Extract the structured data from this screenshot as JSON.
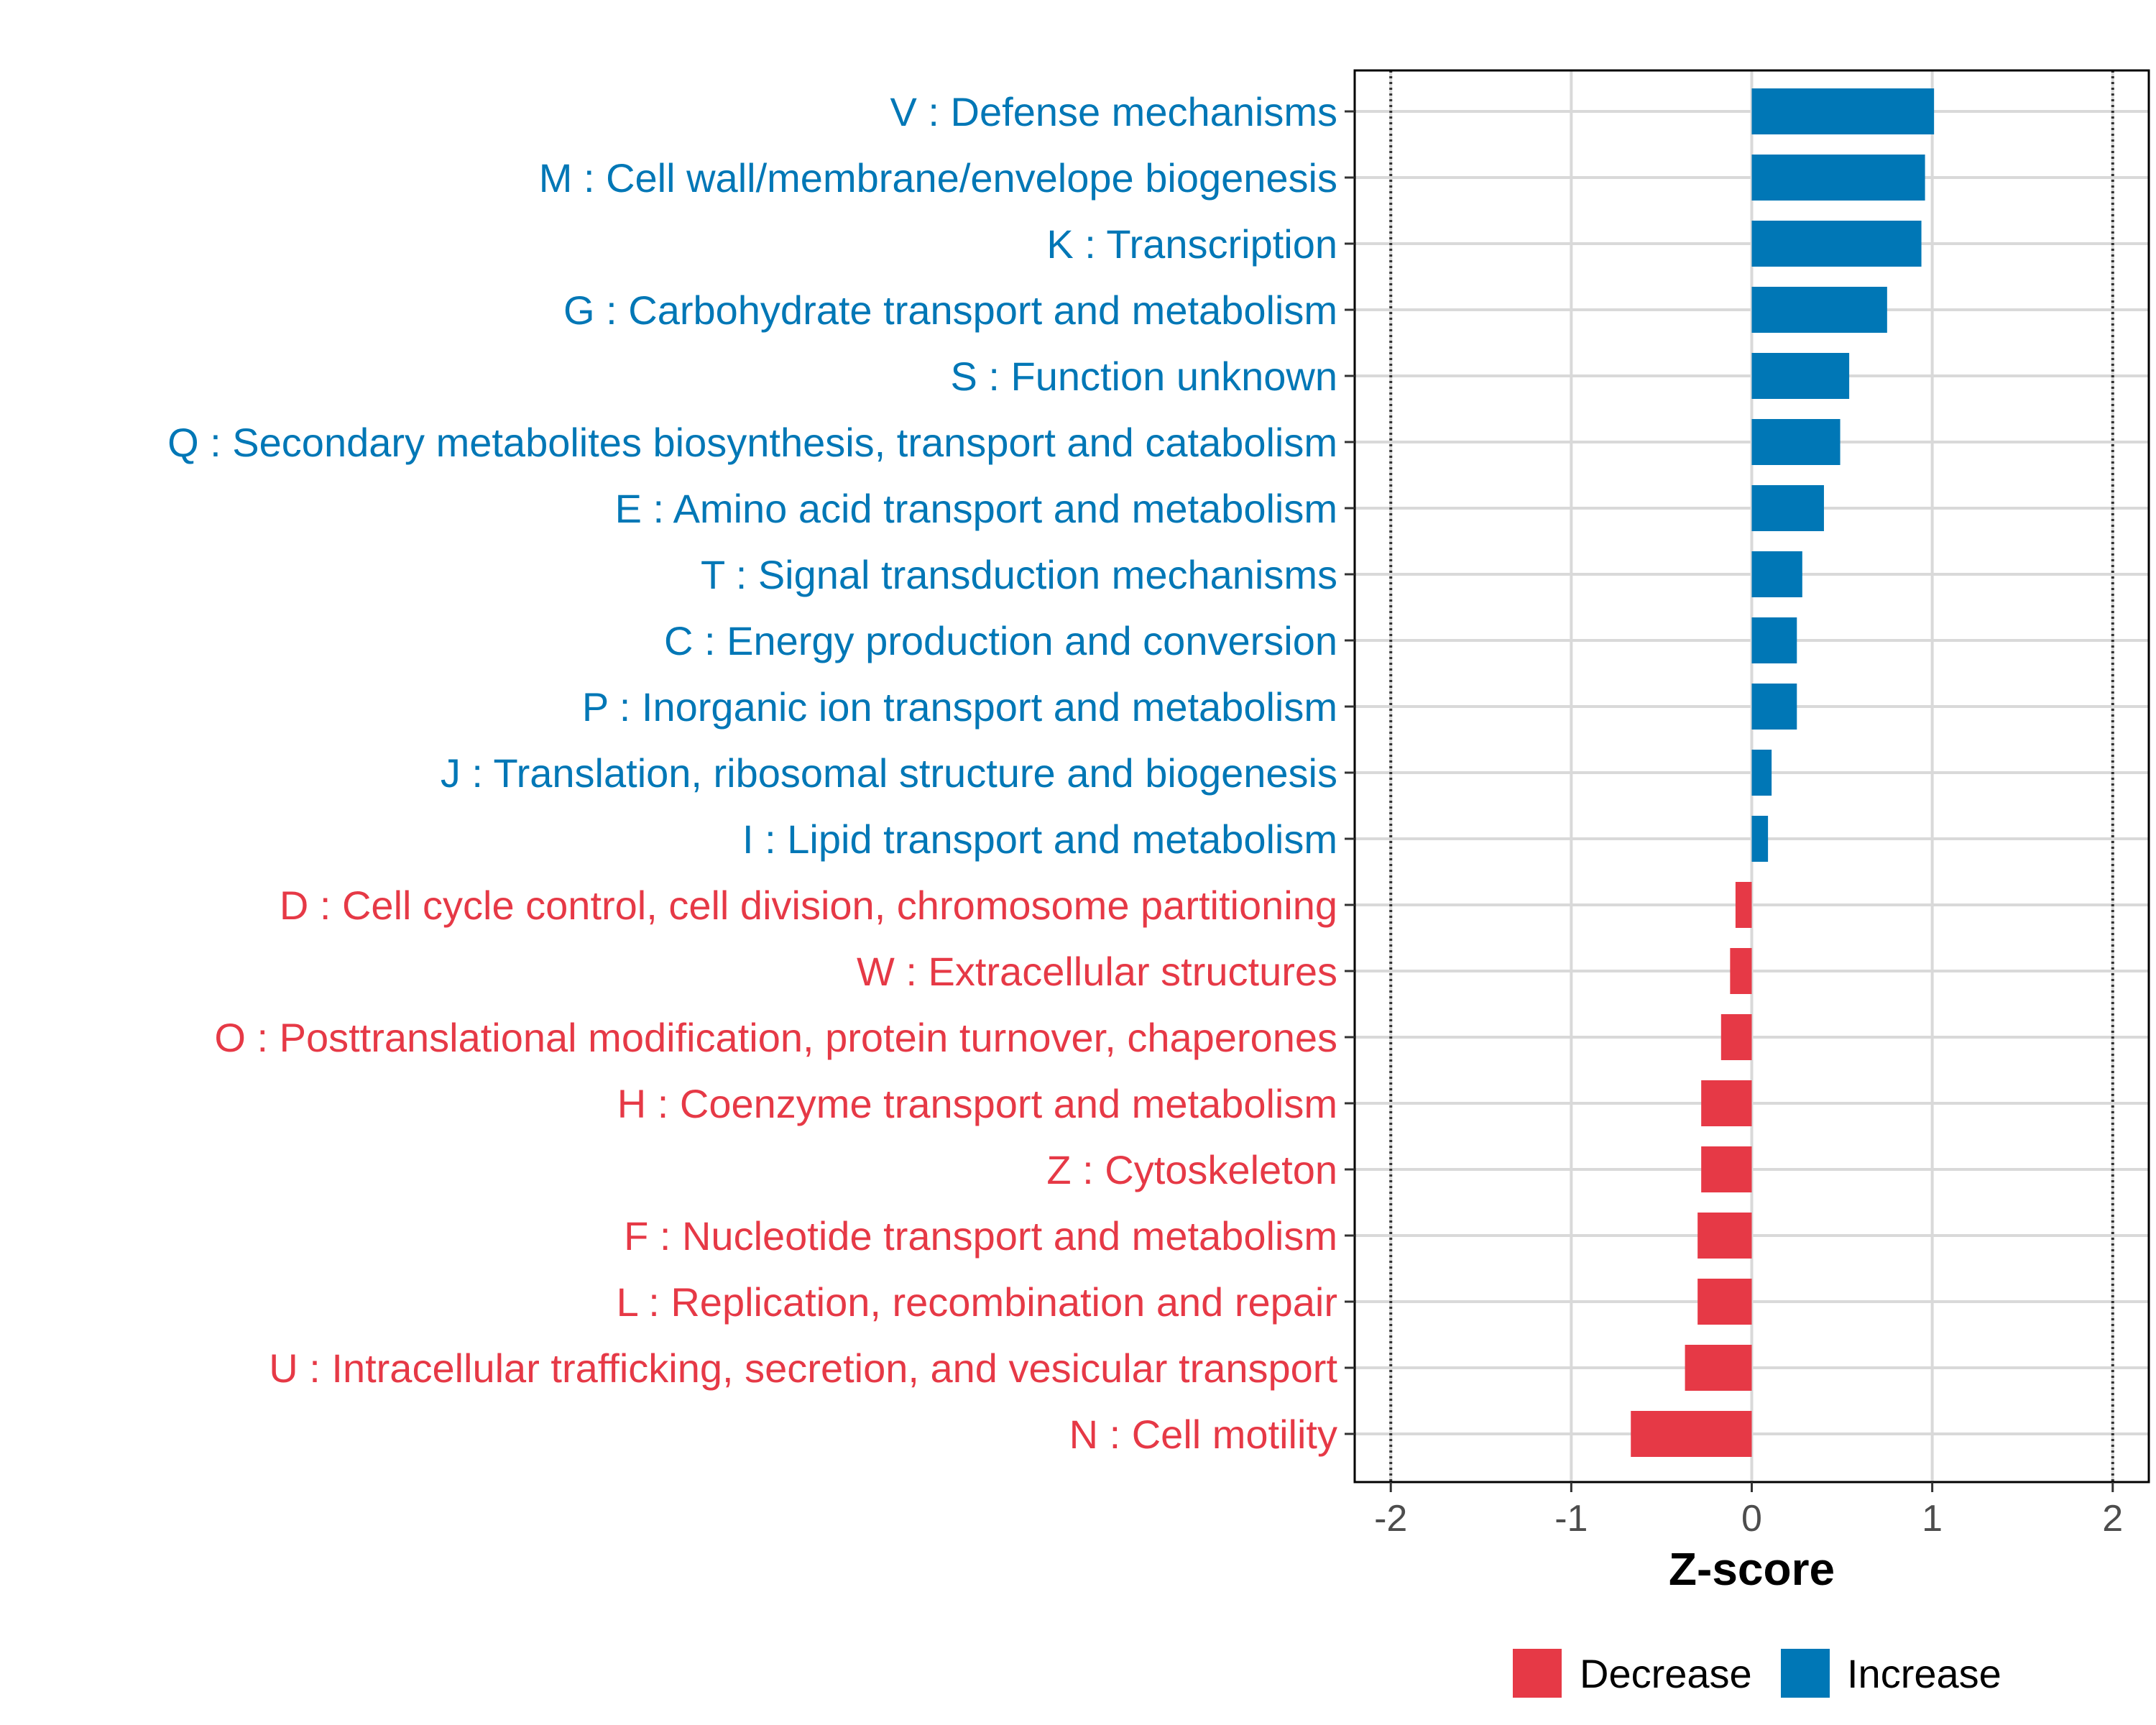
{
  "chart_data": {
    "type": "bar",
    "orientation": "horizontal",
    "xlabel": "Z-score",
    "xlim": [
      -2.2,
      2.2
    ],
    "xticks": [
      -2,
      -1,
      0,
      1,
      2
    ],
    "xtick_labels": [
      "-2",
      "-1",
      "0",
      "1",
      "2"
    ],
    "reference_lines": [
      -2,
      2
    ],
    "grid": true,
    "categories": [
      "V : Defense mechanisms",
      "M : Cell wall/membrane/envelope biogenesis",
      "K : Transcription",
      "G : Carbohydrate transport and metabolism",
      "S : Function unknown",
      "Q : Secondary metabolites biosynthesis, transport and catabolism",
      "E : Amino acid transport and metabolism",
      "T : Signal transduction mechanisms",
      "C : Energy production and conversion",
      "P : Inorganic ion transport and metabolism",
      "J : Translation, ribosomal structure and biogenesis",
      "I : Lipid transport and metabolism",
      "D : Cell cycle control, cell division, chromosome partitioning",
      "W : Extracellular structures",
      "O : Posttranslational modification, protein turnover, chaperones",
      "H : Coenzyme transport and metabolism",
      "Z : Cytoskeleton",
      "F : Nucleotide transport and metabolism",
      "L : Replication, recombination and repair",
      "U : Intracellular trafficking, secretion, and vesicular transport",
      "N : Cell motility"
    ],
    "values": [
      1.01,
      0.96,
      0.94,
      0.75,
      0.54,
      0.49,
      0.4,
      0.28,
      0.25,
      0.25,
      0.11,
      0.09,
      -0.09,
      -0.12,
      -0.17,
      -0.28,
      -0.28,
      -0.3,
      -0.3,
      -0.37,
      -0.67
    ],
    "groups": [
      "Increase",
      "Increase",
      "Increase",
      "Increase",
      "Increase",
      "Increase",
      "Increase",
      "Increase",
      "Increase",
      "Increase",
      "Increase",
      "Increase",
      "Decrease",
      "Decrease",
      "Decrease",
      "Decrease",
      "Decrease",
      "Decrease",
      "Decrease",
      "Decrease",
      "Decrease"
    ],
    "legend": {
      "position": "bottom",
      "entries": [
        {
          "label": "Decrease",
          "color": "#e63946"
        },
        {
          "label": "Increase",
          "color": "#0077b6"
        }
      ]
    }
  },
  "colors": {
    "increase": "#0077b6",
    "decrease": "#e63946",
    "grid": "#d9d9d9",
    "axis": "#000000"
  }
}
